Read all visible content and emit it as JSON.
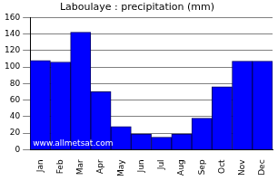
{
  "chart_data": {
    "type": "bar",
    "title": "Laboulaye : precipitation (mm)",
    "categories": [
      "Jan",
      "Feb",
      "Mar",
      "Apr",
      "May",
      "Jun",
      "Jul",
      "Aug",
      "Sep",
      "Oct",
      "Nov",
      "Dec"
    ],
    "values": [
      108,
      106,
      142,
      70,
      28,
      19,
      15,
      19,
      38,
      76,
      107,
      107
    ],
    "color": "#0000ff",
    "ylim": [
      0,
      160
    ],
    "yticks": [
      0,
      20,
      40,
      60,
      80,
      100,
      120,
      140,
      160
    ],
    "grid": true,
    "annotation": "www.allmetsat.com"
  }
}
